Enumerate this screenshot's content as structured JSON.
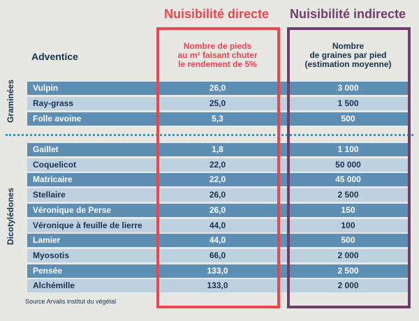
{
  "titles": {
    "direct": "Nuisibilité directe",
    "indirect": "Nuisibilité indirecte"
  },
  "headers": {
    "adventice": "Adventice",
    "direct": [
      "Nombre de pieds",
      "au m² faisant chuter",
      "le rendement de 5%"
    ],
    "indirect": [
      "Nombre",
      "de graines par pied",
      "(estimation moyenne)"
    ]
  },
  "groups": {
    "graminees": "Graminées",
    "dicotyledones": "Dicotylédones"
  },
  "graminees_rows": [
    {
      "name": "Vulpin",
      "direct": "26,0",
      "indirect": "3 000"
    },
    {
      "name": "Ray-grass",
      "direct": "25,0",
      "indirect": "1 500"
    },
    {
      "name": "Folle avoine",
      "direct": "5,3",
      "indirect": "500"
    }
  ],
  "dicotyledones_rows": [
    {
      "name": "Gaillet",
      "direct": "1,8",
      "indirect": "1 100"
    },
    {
      "name": "Coquelicot",
      "direct": "22,0",
      "indirect": "50 000"
    },
    {
      "name": "Matricaire",
      "direct": "22,0",
      "indirect": "45 000"
    },
    {
      "name": "Stellaire",
      "direct": "26,0",
      "indirect": "2 500"
    },
    {
      "name": "Véronique de Perse",
      "direct": "26,0",
      "indirect": "150"
    },
    {
      "name": "Véronique à feuille de lierre",
      "direct": "44,0",
      "indirect": "100"
    },
    {
      "name": "Lamier",
      "direct": "44,0",
      "indirect": "500"
    },
    {
      "name": "Myosotis",
      "direct": "66,0",
      "indirect": "2 000"
    },
    {
      "name": "Pensée",
      "direct": "133,0",
      "indirect": "2 500"
    },
    {
      "name": "Alchémille",
      "direct": "133,0",
      "indirect": "2 000"
    }
  ],
  "source": "Source Arvalis institut du végétal"
}
